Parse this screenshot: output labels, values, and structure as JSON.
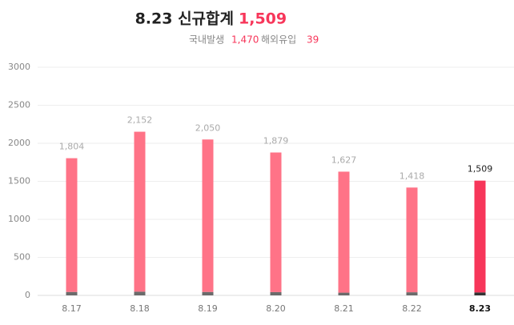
{
  "header": {
    "title": "8.23 신규합계",
    "title_value": "1,509",
    "domestic_label": "국내발생",
    "domestic_value": "1,470",
    "overseas_label": "해외유입",
    "overseas_value": "39"
  },
  "chart_data": {
    "type": "stacked_bar",
    "categories": [
      "8.17",
      "8.18",
      "8.19",
      "8.20",
      "8.21",
      "8.22",
      "8.23"
    ],
    "series": [
      {
        "name": "해외유입",
        "colors": [
          "#6b6b6b",
          "#6b6b6b",
          "#6b6b6b",
          "#6b6b6b",
          "#6b6b6b",
          "#6b6b6b",
          "#333333"
        ],
        "values": [
          45,
          49,
          45,
          43,
          36,
          41,
          39
        ]
      },
      {
        "name": "국내발생",
        "colors": [
          "#ff7387",
          "#ff7387",
          "#ff7387",
          "#ff7387",
          "#ff7387",
          "#ff7387",
          "#f7365a"
        ],
        "values": [
          1759,
          2103,
          2005,
          1836,
          1591,
          1377,
          1470
        ]
      }
    ],
    "totals": [
      1804,
      2152,
      2050,
      1879,
      1627,
      1418,
      1509
    ],
    "total_labels": [
      "1,804",
      "2,152",
      "2,050",
      "1,879",
      "1,627",
      "1,418",
      "1,509"
    ],
    "ylim": [
      0,
      3000
    ],
    "yticks": [
      0,
      500,
      1000,
      1500,
      2000,
      2500,
      3000
    ],
    "grid": true
  }
}
